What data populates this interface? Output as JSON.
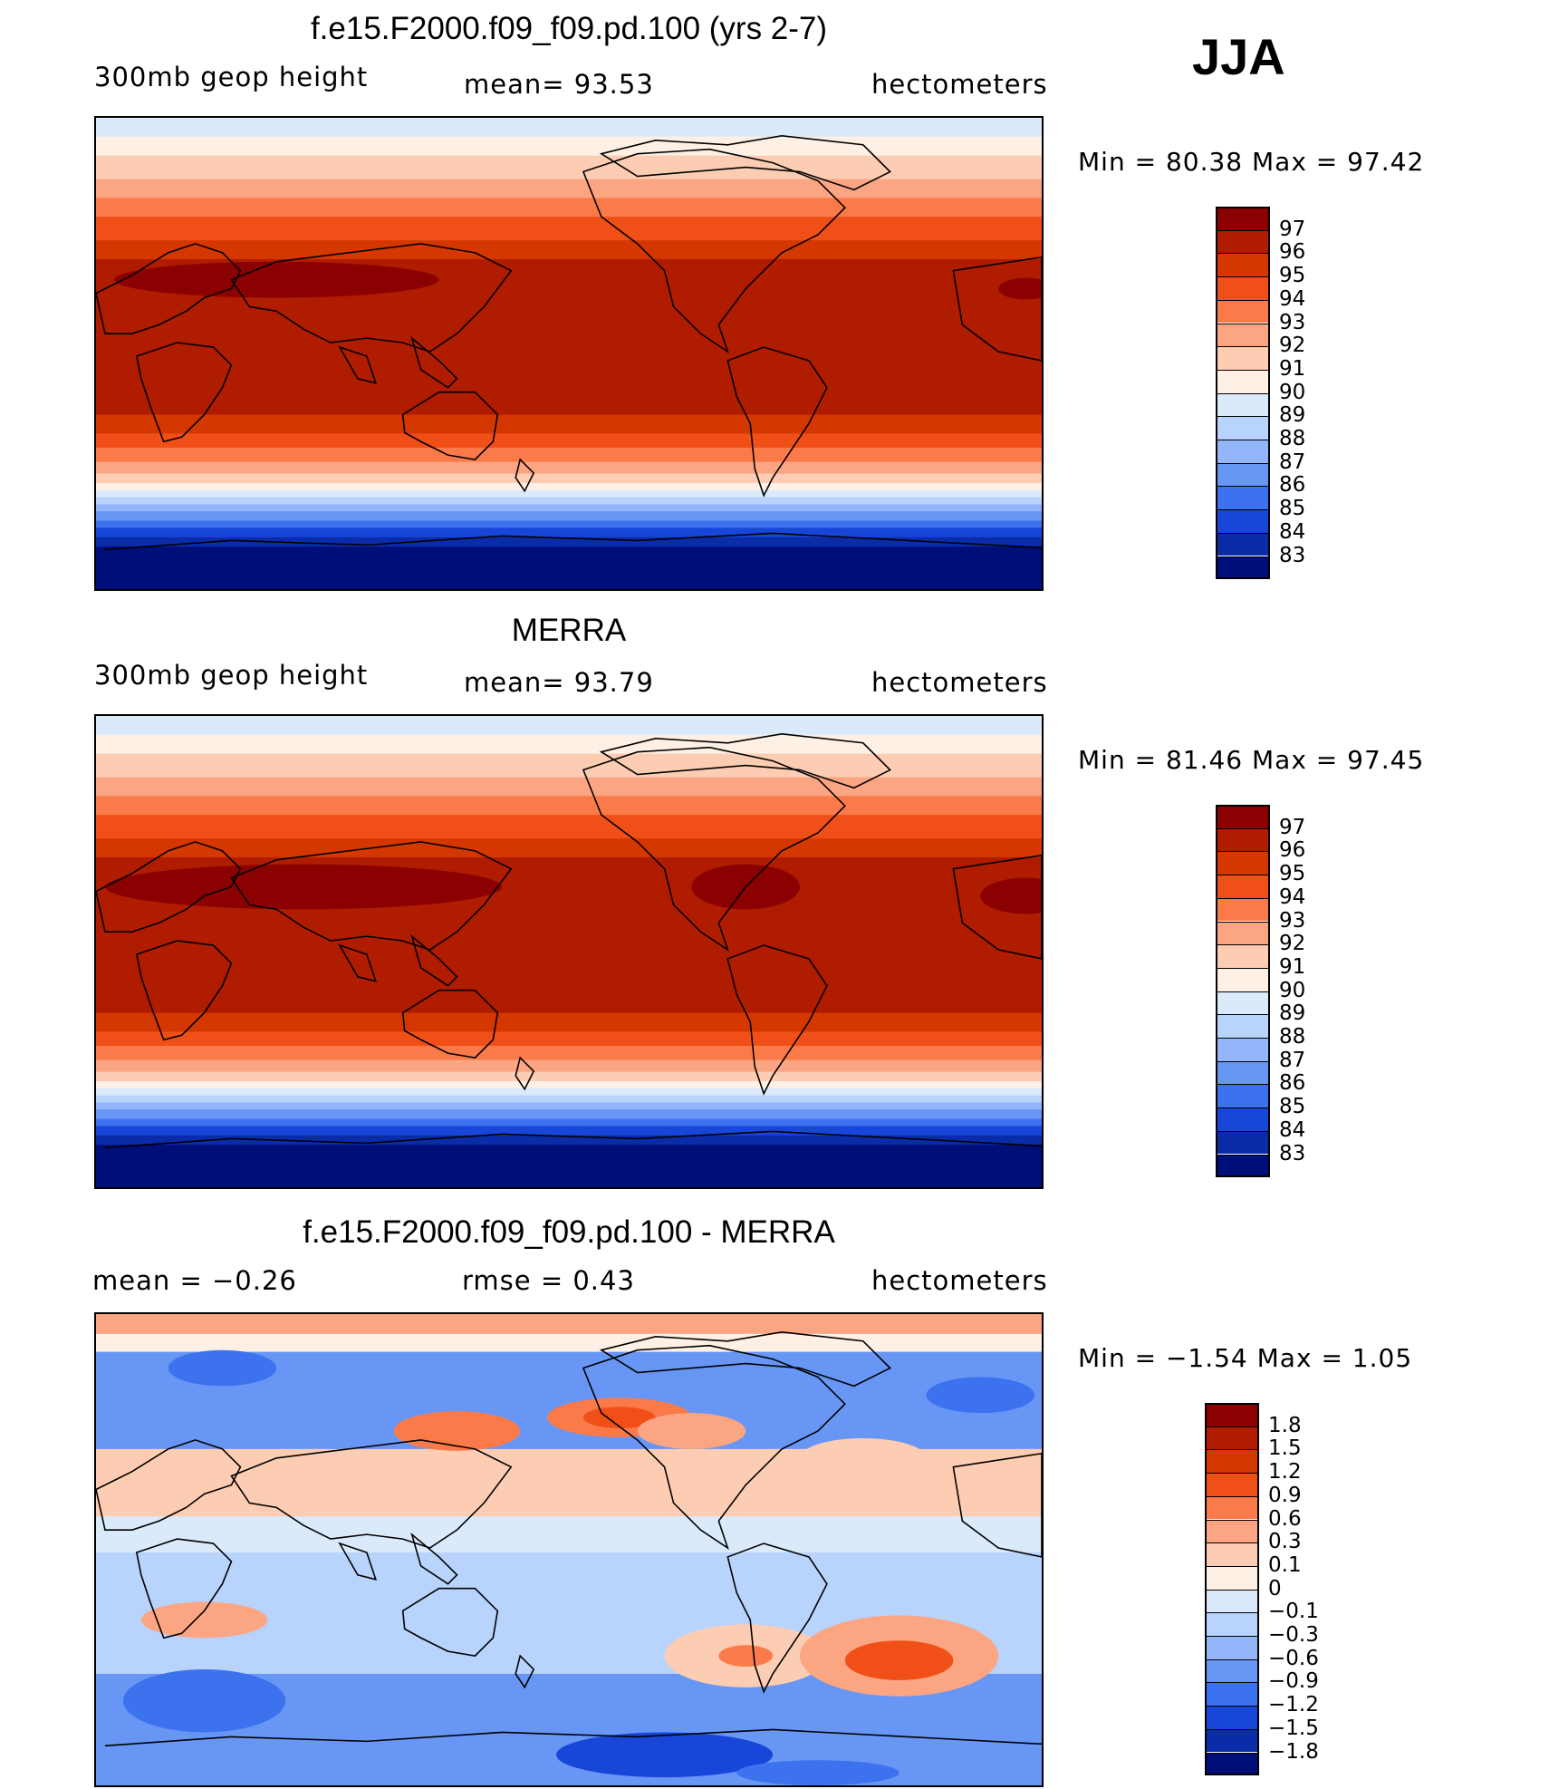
{
  "season": "JJA",
  "units": "hectometers",
  "panels": [
    {
      "title": "f.e15.F2000.f09_f09.pd.100 (yrs 2-7)",
      "left_label": "300mb  geop  height",
      "mid_label": "mean=   93.53",
      "right_label": "hectometers",
      "minmax": "Min  =    80.38  Max  =    97.42",
      "map_type": "field"
    },
    {
      "title": "MERRA",
      "left_label": "300mb  geop  height",
      "mid_label": "mean=   93.79",
      "right_label": "hectometers",
      "minmax": "Min  =    81.46  Max  =    97.45",
      "map_type": "field"
    },
    {
      "title": "f.e15.F2000.f09_f09.pd.100 - MERRA",
      "left_label": "mean  =    −0.26",
      "mid_label": "rmse  =     0.43",
      "right_label": "hectometers",
      "minmax": "Min  =   −1.54  Max  =     1.05",
      "map_type": "diff"
    }
  ],
  "colorbar_field": {
    "labels": [
      "97",
      "96",
      "95",
      "94",
      "93",
      "92",
      "91",
      "90",
      "89",
      "88",
      "87",
      "86",
      "85",
      "84",
      "83"
    ],
    "colors": [
      "#8b0000",
      "#b01c00",
      "#d43700",
      "#f05018",
      "#fb7a4a",
      "#fca583",
      "#fdcdb3",
      "#fef0e4",
      "#dbeafb",
      "#b8d3fc",
      "#93b6fb",
      "#6796f5",
      "#3d72ef",
      "#1746d8",
      "#0a2ca8",
      "#000e7a"
    ]
  },
  "colorbar_diff": {
    "labels": [
      "1.8",
      "1.5",
      "1.2",
      "0.9",
      "0.6",
      "0.3",
      "0.1",
      "0",
      "−0.1",
      "−0.3",
      "−0.6",
      "−0.9",
      "−1.2",
      "−1.5",
      "−1.8"
    ],
    "colors": [
      "#8b0000",
      "#b01c00",
      "#d43700",
      "#f05018",
      "#fb7a4a",
      "#fca583",
      "#fdcdb3",
      "#fef0e4",
      "#dbeafb",
      "#b8d3fc",
      "#93b6fb",
      "#6796f5",
      "#3d72ef",
      "#1746d8",
      "#0a2ca8",
      "#000e7a"
    ]
  }
}
